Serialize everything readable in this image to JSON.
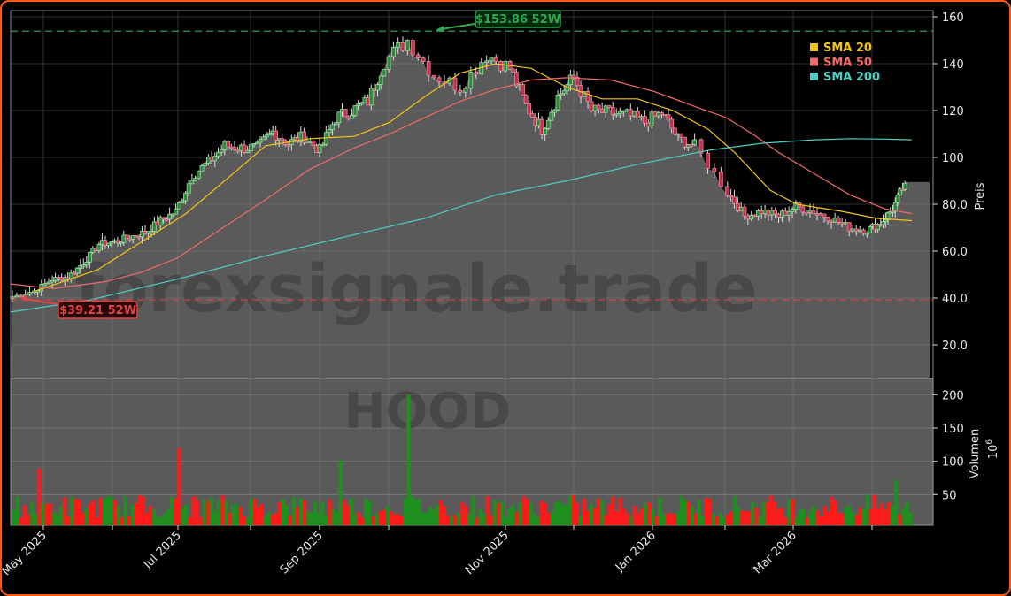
{
  "chart_data": {
    "type": "candlestick",
    "ticker": "HOOD",
    "watermark": "forexsignale.trade",
    "price_axis": {
      "label": "Preis",
      "ticks": [
        20.0,
        40.0,
        60.0,
        80.0,
        100,
        120,
        140,
        160
      ],
      "tick_labels": [
        "20.0",
        "40.0",
        "60.0",
        "80.0",
        "100",
        "120",
        "140",
        "160"
      ],
      "range": [
        0,
        163
      ]
    },
    "volume_axis": {
      "label": "Volumen",
      "unit": "10^6",
      "unit_display": "10",
      "unit_exp": "6",
      "ticks": [
        50,
        100,
        150,
        200
      ],
      "tick_labels": [
        "50",
        "100",
        "150",
        "200"
      ]
    },
    "x_axis": {
      "tick_labels": [
        "May 2025",
        "Jul 2025",
        "Sep 2025",
        "Nov 2025",
        "Jan 2026",
        "Mar 2026"
      ]
    },
    "legend": [
      {
        "label": "SMA 20",
        "color": "#f5c518"
      },
      {
        "label": "SMA 50",
        "color": "#f06a6a"
      },
      {
        "label": "SMA 200",
        "color": "#4ecdc4"
      }
    ],
    "annotations": {
      "high_52w": {
        "label": "$153.86 52W",
        "value": 153.86,
        "color": "#2ea84f"
      },
      "low_52w": {
        "label": "$39.21 52W",
        "value": 39.21,
        "color": "#e04545"
      }
    },
    "close_series": [
      [
        "2025-04-21",
        40.5
      ],
      [
        "2025-04-28",
        43
      ],
      [
        "2025-05-05",
        48
      ],
      [
        "2025-05-12",
        49
      ],
      [
        "2025-05-19",
        55
      ],
      [
        "2025-05-26",
        63
      ],
      [
        "2025-06-02",
        64
      ],
      [
        "2025-06-09",
        66
      ],
      [
        "2025-06-16",
        68
      ],
      [
        "2025-06-23",
        73
      ],
      [
        "2025-06-30",
        77
      ],
      [
        "2025-07-07",
        92
      ],
      [
        "2025-07-14",
        98
      ],
      [
        "2025-07-21",
        105
      ],
      [
        "2025-07-28",
        104
      ],
      [
        "2025-08-04",
        104
      ],
      [
        "2025-08-11",
        111
      ],
      [
        "2025-08-18",
        106
      ],
      [
        "2025-08-25",
        109
      ],
      [
        "2025-09-01",
        103
      ],
      [
        "2025-09-08",
        117
      ],
      [
        "2025-09-15",
        120
      ],
      [
        "2025-09-22",
        124
      ],
      [
        "2025-09-29",
        141
      ],
      [
        "2025-10-06",
        150
      ],
      [
        "2025-10-13",
        135
      ],
      [
        "2025-10-20",
        130
      ],
      [
        "2025-10-27",
        144
      ],
      [
        "2025-11-03",
        138
      ],
      [
        "2025-11-10",
        122
      ],
      [
        "2025-11-17",
        112
      ],
      [
        "2025-11-24",
        126
      ],
      [
        "2025-12-01",
        134
      ],
      [
        "2025-12-08",
        120
      ],
      [
        "2025-12-15",
        119
      ],
      [
        "2025-12-22",
        118
      ],
      [
        "2025-12-29",
        115
      ],
      [
        "2026-01-05",
        119
      ],
      [
        "2026-01-12",
        108
      ],
      [
        "2026-01-19",
        105
      ],
      [
        "2026-02-02",
        85
      ],
      [
        "2026-02-09",
        75
      ],
      [
        "2026-02-16",
        77
      ],
      [
        "2026-02-23",
        75
      ],
      [
        "2026-03-02",
        79
      ],
      [
        "2026-03-09",
        77
      ],
      [
        "2026-03-16",
        74
      ],
      [
        "2026-03-23",
        70
      ],
      [
        "2026-03-30",
        69
      ],
      [
        "2026-04-06",
        72
      ],
      [
        "2026-04-13",
        78
      ],
      [
        "2026-04-20",
        89
      ]
    ],
    "sma": {
      "sma20": [
        [
          40,
          43
        ],
        [
          110,
          52
        ],
        [
          160,
          64
        ],
        [
          210,
          76
        ],
        [
          260,
          92
        ],
        [
          300,
          105
        ],
        [
          350,
          108
        ],
        [
          400,
          109
        ],
        [
          440,
          115
        ],
        [
          480,
          126
        ],
        [
          520,
          136
        ],
        [
          560,
          140
        ],
        [
          600,
          138
        ],
        [
          640,
          130
        ],
        [
          680,
          125
        ],
        [
          720,
          125
        ],
        [
          760,
          120
        ],
        [
          800,
          112
        ],
        [
          830,
          102
        ],
        [
          870,
          86
        ],
        [
          900,
          80
        ],
        [
          950,
          77
        ],
        [
          990,
          74
        ],
        [
          1030,
          73
        ]
      ],
      "sma50": [
        [
          12,
          46
        ],
        [
          60,
          44
        ],
        [
          120,
          47
        ],
        [
          160,
          51
        ],
        [
          200,
          57
        ],
        [
          260,
          72
        ],
        [
          300,
          82
        ],
        [
          350,
          95
        ],
        [
          400,
          104
        ],
        [
          440,
          110
        ],
        [
          480,
          117
        ],
        [
          520,
          124
        ],
        [
          560,
          129
        ],
        [
          600,
          133
        ],
        [
          640,
          134
        ],
        [
          690,
          133
        ],
        [
          740,
          128
        ],
        [
          790,
          121
        ],
        [
          820,
          117
        ],
        [
          850,
          110
        ],
        [
          880,
          102
        ],
        [
          920,
          93
        ],
        [
          960,
          84
        ],
        [
          1000,
          78
        ],
        [
          1030,
          76
        ]
      ],
      "sma200": [
        [
          12,
          34
        ],
        [
          100,
          39
        ],
        [
          200,
          48
        ],
        [
          300,
          58
        ],
        [
          400,
          67
        ],
        [
          480,
          74
        ],
        [
          560,
          84
        ],
        [
          640,
          90
        ],
        [
          720,
          97
        ],
        [
          800,
          103
        ],
        [
          860,
          106
        ],
        [
          920,
          107.5
        ],
        [
          960,
          108
        ],
        [
          1000,
          107.8
        ],
        [
          1030,
          107.5
        ]
      ]
    },
    "volume_bars_millions": {
      "note": "approximate daily volume, green=up day, red=down day",
      "peaks": [
        {
          "date": "2025-10-06",
          "value": 200,
          "color": "green"
        },
        {
          "date": "2025-07-01",
          "value": 120,
          "color": "red"
        },
        {
          "date": "2025-09-10",
          "value": 103,
          "color": "green"
        },
        {
          "date": "2025-04-29",
          "value": 89,
          "color": "red"
        },
        {
          "date": "2026-04-14",
          "value": 72,
          "color": "green"
        }
      ],
      "typical_range": [
        15,
        60
      ]
    },
    "colors": {
      "up": "#1f8f1f",
      "down": "#ff1a1a",
      "area_fill": "#5a5a5a",
      "background": "#000000",
      "frame": "#ff5a0a"
    }
  }
}
